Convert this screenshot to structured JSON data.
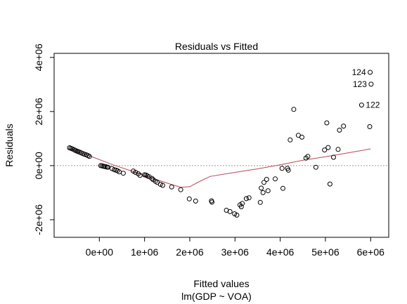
{
  "chart_data": {
    "type": "scatter",
    "title": "Residuals vs Fitted",
    "xlabel": "Fitted values",
    "subtitle": "lm(GDP ~ VOA)",
    "ylabel": "Residuals",
    "xlim": [
      -1000000,
      6400000
    ],
    "ylim": [
      -2650000,
      4150000
    ],
    "x_ticks": [
      0,
      1000000,
      2000000,
      3000000,
      4000000,
      5000000,
      6000000
    ],
    "x_tick_labels": [
      "0e+00",
      "1e+06",
      "2e+06",
      "3e+06",
      "4e+06",
      "5e+06",
      "6e+06"
    ],
    "y_ticks": [
      -2000000,
      0,
      2000000,
      4000000
    ],
    "y_tick_labels": [
      "-2e+06",
      "0e+00",
      "2e+06",
      "4e+06"
    ],
    "reference_line_y": 0,
    "colors": {
      "points": "#000000",
      "smoother": "#b5485b",
      "reference": "#9a9a9a"
    },
    "points": [
      [
        -660000,
        660000
      ],
      [
        -630000,
        640000
      ],
      [
        -600000,
        620000
      ],
      [
        -560000,
        590000
      ],
      [
        -530000,
        560000
      ],
      [
        -500000,
        540000
      ],
      [
        -470000,
        520000
      ],
      [
        -440000,
        500000
      ],
      [
        -400000,
        470000
      ],
      [
        -360000,
        440000
      ],
      [
        -330000,
        420000
      ],
      [
        -290000,
        400000
      ],
      [
        -250000,
        370000
      ],
      [
        -220000,
        340000
      ],
      [
        30000,
        0
      ],
      [
        60000,
        -10000
      ],
      [
        90000,
        -20000
      ],
      [
        110000,
        -30000
      ],
      [
        140000,
        -40000
      ],
      [
        170000,
        -55000
      ],
      [
        190000,
        -60000
      ],
      [
        280000,
        -110000
      ],
      [
        330000,
        -150000
      ],
      [
        370000,
        -170000
      ],
      [
        400000,
        -190000
      ],
      [
        440000,
        -230000
      ],
      [
        530000,
        -280000
      ],
      [
        750000,
        -200000
      ],
      [
        800000,
        -250000
      ],
      [
        860000,
        -300000
      ],
      [
        900000,
        -360000
      ],
      [
        1000000,
        -340000
      ],
      [
        1030000,
        -350000
      ],
      [
        1060000,
        -380000
      ],
      [
        1100000,
        -410000
      ],
      [
        1160000,
        -470000
      ],
      [
        1190000,
        -520000
      ],
      [
        1240000,
        -580000
      ],
      [
        1280000,
        -620000
      ],
      [
        1350000,
        -690000
      ],
      [
        1400000,
        -730000
      ],
      [
        1600000,
        -790000
      ],
      [
        1800000,
        -890000
      ],
      [
        1990000,
        -1230000
      ],
      [
        2130000,
        -1310000
      ],
      [
        2480000,
        -1300000
      ],
      [
        2490000,
        -1350000
      ],
      [
        2810000,
        -1650000
      ],
      [
        2890000,
        -1700000
      ],
      [
        2990000,
        -1780000
      ],
      [
        3040000,
        -1830000
      ],
      [
        3110000,
        -1450000
      ],
      [
        3140000,
        -1520000
      ],
      [
        3160000,
        -1400000
      ],
      [
        3250000,
        -1220000
      ],
      [
        3310000,
        -1190000
      ],
      [
        3560000,
        -1360000
      ],
      [
        3580000,
        -830000
      ],
      [
        3620000,
        -1000000
      ],
      [
        3640000,
        -620000
      ],
      [
        3700000,
        -510000
      ],
      [
        3730000,
        -930000
      ],
      [
        3890000,
        -490000
      ],
      [
        4040000,
        -100000
      ],
      [
        4060000,
        -840000
      ],
      [
        4160000,
        -100000
      ],
      [
        4180000,
        -170000
      ],
      [
        4220000,
        950000
      ],
      [
        4300000,
        2080000
      ],
      [
        4400000,
        1120000
      ],
      [
        4480000,
        1050000
      ],
      [
        4570000,
        280000
      ],
      [
        4610000,
        340000
      ],
      [
        4790000,
        -60000
      ],
      [
        4980000,
        580000
      ],
      [
        5030000,
        1580000
      ],
      [
        5060000,
        670000
      ],
      [
        5100000,
        -680000
      ],
      [
        5180000,
        310000
      ],
      [
        5280000,
        600000
      ],
      [
        5310000,
        1310000
      ],
      [
        5400000,
        1460000
      ],
      [
        5800000,
        2240000
      ],
      [
        5980000,
        1440000
      ],
      [
        5990000,
        3450000
      ],
      [
        6010000,
        3010000
      ]
    ],
    "point_labels": [
      {
        "text": "124",
        "x": 5990000,
        "y": 3450000
      },
      {
        "text": "123",
        "x": 6010000,
        "y": 3010000
      },
      {
        "text": "122",
        "x": 5800000,
        "y": 2240000
      }
    ],
    "smoother": [
      [
        -660000,
        630000
      ],
      [
        -200000,
        350000
      ],
      [
        300000,
        30000
      ],
      [
        800000,
        -250000
      ],
      [
        1200000,
        -480000
      ],
      [
        1600000,
        -700000
      ],
      [
        1800000,
        -800000
      ],
      [
        2000000,
        -780000
      ],
      [
        2200000,
        -600000
      ],
      [
        2450000,
        -400000
      ],
      [
        3000000,
        -250000
      ],
      [
        3500000,
        -120000
      ],
      [
        4000000,
        30000
      ],
      [
        4500000,
        200000
      ],
      [
        5000000,
        330000
      ],
      [
        5500000,
        470000
      ],
      [
        6000000,
        620000
      ]
    ]
  }
}
